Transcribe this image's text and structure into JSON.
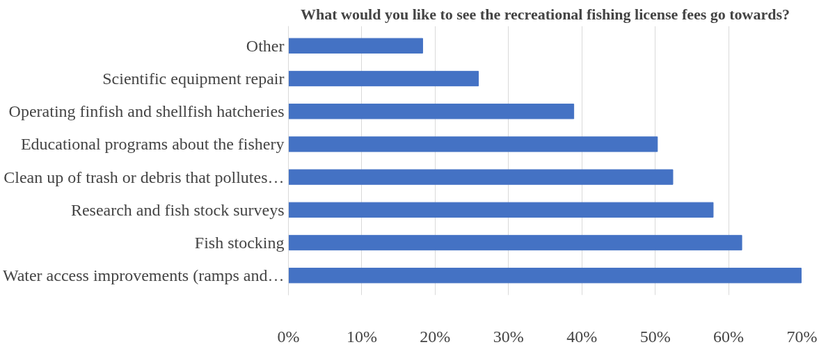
{
  "chart_data": {
    "type": "bar",
    "orientation": "horizontal",
    "title": "What would you like to see the recreational fishing license fees go towards?",
    "categories": [
      "Other",
      "Scientific equipment repair",
      "Operating finfish and shellfish hatcheries",
      "Educational programs about the fishery",
      "Clean up of trash or debris that pollutes…",
      "Research and fish stock surveys",
      "Fish stocking",
      "Water access improvements (ramps and…"
    ],
    "values": [
      18.3,
      25.9,
      38.9,
      50.3,
      52.4,
      57.9,
      61.8,
      69.9
    ],
    "color": "#4472c4",
    "xlim": [
      0,
      70
    ],
    "xticks": [
      {
        "value": 0,
        "label": "0%"
      },
      {
        "value": 10,
        "label": "10%"
      },
      {
        "value": 20,
        "label": "20%"
      },
      {
        "value": 30,
        "label": "30%"
      },
      {
        "value": 40,
        "label": "40%"
      },
      {
        "value": 50,
        "label": "50%"
      },
      {
        "value": 60,
        "label": "60%"
      },
      {
        "value": 70,
        "label": "70%"
      }
    ],
    "grid": "x"
  }
}
